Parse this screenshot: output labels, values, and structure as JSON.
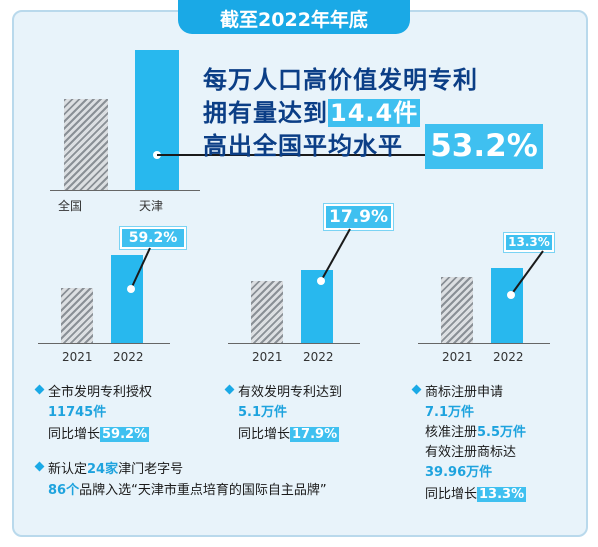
{
  "title": "截至2022年年底",
  "colors": {
    "accent": "#1aa9e6",
    "highlight": "#3fc0f0",
    "headline": "#0b3e86",
    "bar_blue": "#28b8ee",
    "bar_gray": "#8a9096"
  },
  "top": {
    "line1": "每万人口高价值发明专利",
    "line2_prefix": "拥有量达到",
    "line2_value": "14.4件",
    "line3": "高出全国平均水平",
    "big_value": "53.2%"
  },
  "small_charts": [
    {
      "callout": "59.2%"
    },
    {
      "callout": "17.9%"
    },
    {
      "callout": "13.3%"
    }
  ],
  "chart_data": [
    {
      "type": "bar",
      "categories": [
        "全国",
        "天津"
      ],
      "values": [
        1,
        1.532
      ],
      "xlabel": "",
      "ylabel": ""
    },
    {
      "type": "bar",
      "categories": [
        "2021",
        "2022"
      ],
      "values": [
        1,
        1.592
      ],
      "xlabel": "",
      "ylabel": ""
    },
    {
      "type": "bar",
      "categories": [
        "2021",
        "2022"
      ],
      "values": [
        1,
        1.179
      ],
      "xlabel": "",
      "ylabel": ""
    },
    {
      "type": "bar",
      "categories": [
        "2021",
        "2022"
      ],
      "values": [
        1,
        1.133
      ],
      "xlabel": "",
      "ylabel": ""
    }
  ],
  "bullets": {
    "b1": {
      "title": "全市发明专利授权",
      "value": "11745件",
      "growth_prefix": "同比增长",
      "growth": "59.2%"
    },
    "b2": {
      "title": "有效发明专利达到",
      "value": "5.1万件",
      "growth_prefix": "同比增长",
      "growth": "17.9%"
    },
    "b3": {
      "title": "商标注册申请",
      "value": "7.1万件",
      "l3_prefix": "核准注册",
      "l3_value": "5.5万件",
      "l4": "有效注册商标达",
      "l5_value": "39.96万件",
      "growth_prefix": "同比增长",
      "growth": "13.3%"
    },
    "b4": {
      "l1_prefix": "新认定",
      "l1_value": "24家",
      "l1_suffix": "津门老字号",
      "l2_value": "86个",
      "l2_text": "品牌入选“天津市重点培育的国际自主品牌”"
    }
  }
}
